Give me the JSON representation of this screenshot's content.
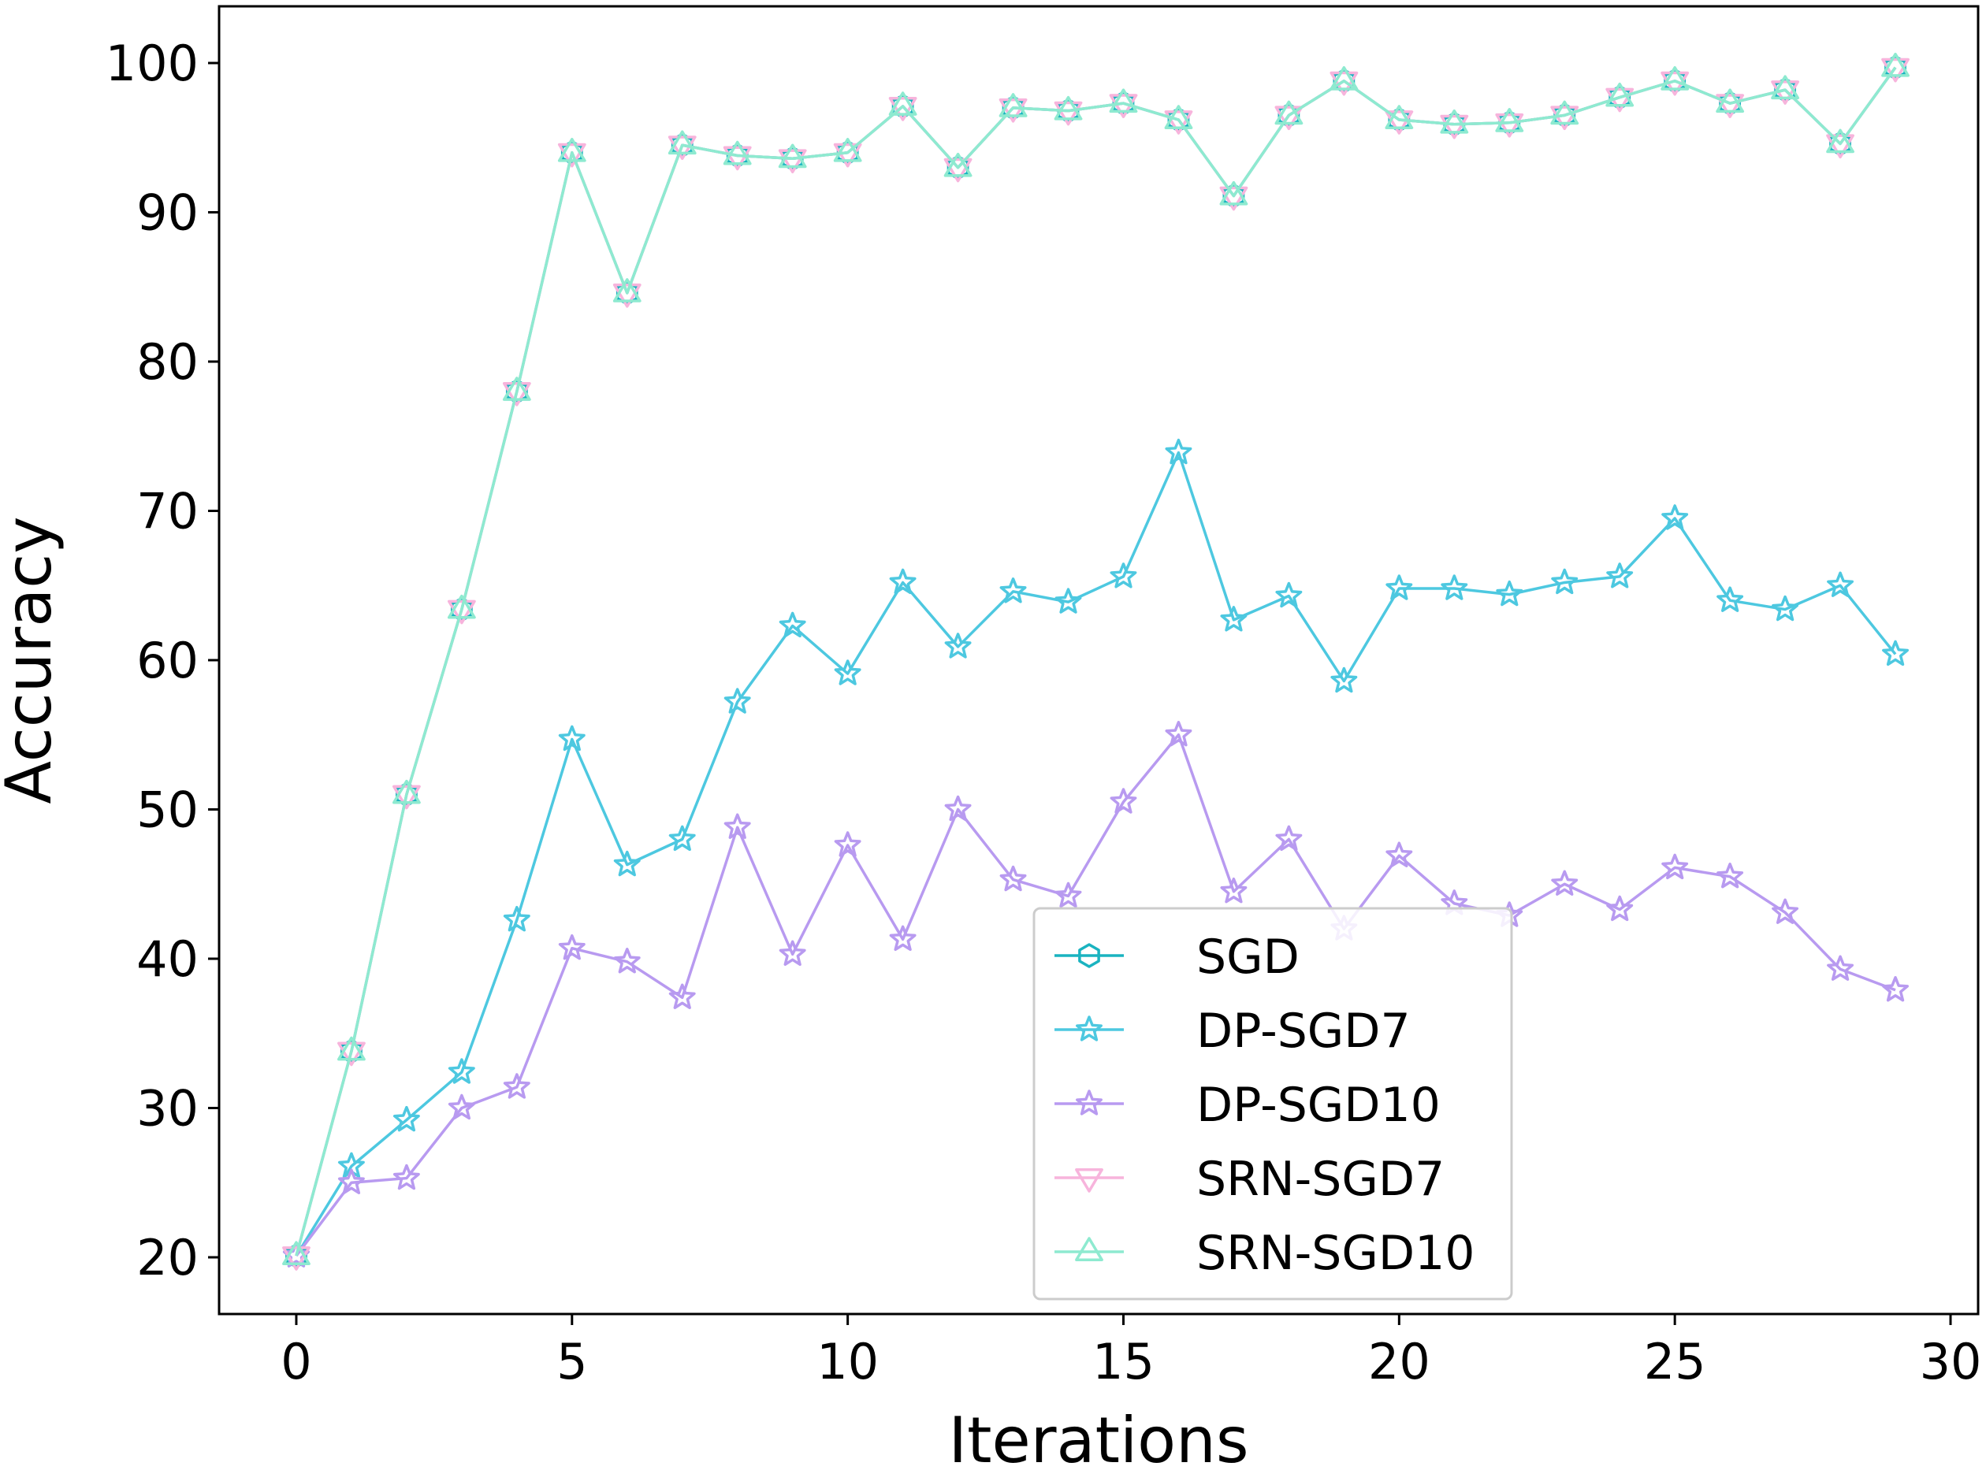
{
  "chart_data": {
    "type": "line",
    "title": "",
    "xlabel": "Iterations",
    "ylabel": "Accuracy",
    "xlim": [
      -1.4,
      30.5
    ],
    "ylim": [
      16.2,
      103.8
    ],
    "xticks": [
      0,
      5,
      10,
      15,
      20,
      25,
      30
    ],
    "yticks": [
      20,
      30,
      40,
      50,
      60,
      70,
      80,
      90,
      100
    ],
    "xtick_labels": [
      "0",
      "5",
      "10",
      "15",
      "20",
      "25",
      "30"
    ],
    "ytick_labels": [
      "20",
      "30",
      "40",
      "50",
      "60",
      "70",
      "80",
      "90",
      "100"
    ],
    "x": [
      0,
      1,
      2,
      3,
      4,
      5,
      6,
      7,
      8,
      9,
      10,
      11,
      12,
      13,
      14,
      15,
      16,
      17,
      18,
      19,
      20,
      21,
      22,
      23,
      24,
      25,
      26,
      27,
      28,
      29
    ],
    "legend_position": "lower-center",
    "series": [
      {
        "name": "SGD",
        "color": "#1ab3c0",
        "marker": "hexagon",
        "values": [
          20.1,
          33.8,
          51.0,
          63.4,
          78.0,
          94.0,
          84.6,
          94.5,
          93.8,
          93.6,
          94.0,
          97.1,
          93.0,
          97.0,
          96.8,
          97.3,
          96.2,
          91.1,
          96.5,
          98.8,
          96.2,
          95.9,
          96.0,
          96.5,
          97.7,
          98.8,
          97.3,
          98.2,
          94.6,
          99.7
        ]
      },
      {
        "name": "DP-SGD7",
        "color": "#4dc8e0",
        "marker": "star",
        "values": [
          20.1,
          26.1,
          29.2,
          32.4,
          42.6,
          54.7,
          46.3,
          48.0,
          57.2,
          62.3,
          59.1,
          65.2,
          60.9,
          64.6,
          63.9,
          65.6,
          73.9,
          62.7,
          64.3,
          58.6,
          64.8,
          64.8,
          64.4,
          65.2,
          65.6,
          69.5,
          64.0,
          63.4,
          65.0,
          60.4
        ]
      },
      {
        "name": "DP-SGD10",
        "color": "#b89af0",
        "marker": "star",
        "values": [
          20.1,
          25.0,
          25.3,
          30.0,
          31.4,
          40.7,
          39.8,
          37.4,
          48.8,
          40.3,
          47.6,
          41.3,
          50.0,
          45.3,
          44.2,
          50.5,
          55.0,
          44.5,
          48.0,
          42.0,
          46.9,
          43.7,
          42.9,
          45.0,
          43.3,
          46.1,
          45.5,
          43.1,
          39.3,
          37.9
        ]
      },
      {
        "name": "SRN-SGD7",
        "color": "#f7b4dc",
        "marker": "triangle-down",
        "values": [
          20.1,
          33.8,
          51.0,
          63.4,
          78.0,
          94.0,
          84.6,
          94.5,
          93.8,
          93.6,
          94.0,
          97.1,
          93.0,
          97.0,
          96.8,
          97.3,
          96.2,
          91.1,
          96.5,
          98.8,
          96.2,
          95.9,
          96.0,
          96.5,
          97.7,
          98.8,
          97.3,
          98.2,
          94.6,
          99.7
        ]
      },
      {
        "name": "SRN-SGD10",
        "color": "#8eead0",
        "marker": "triangle-up",
        "values": [
          20.1,
          33.8,
          51.0,
          63.4,
          78.0,
          94.0,
          84.6,
          94.5,
          93.8,
          93.6,
          94.0,
          97.1,
          93.0,
          97.0,
          96.8,
          97.3,
          96.2,
          91.1,
          96.5,
          98.8,
          96.2,
          95.9,
          96.0,
          96.5,
          97.7,
          98.8,
          97.3,
          98.2,
          94.6,
          99.7
        ]
      }
    ]
  }
}
